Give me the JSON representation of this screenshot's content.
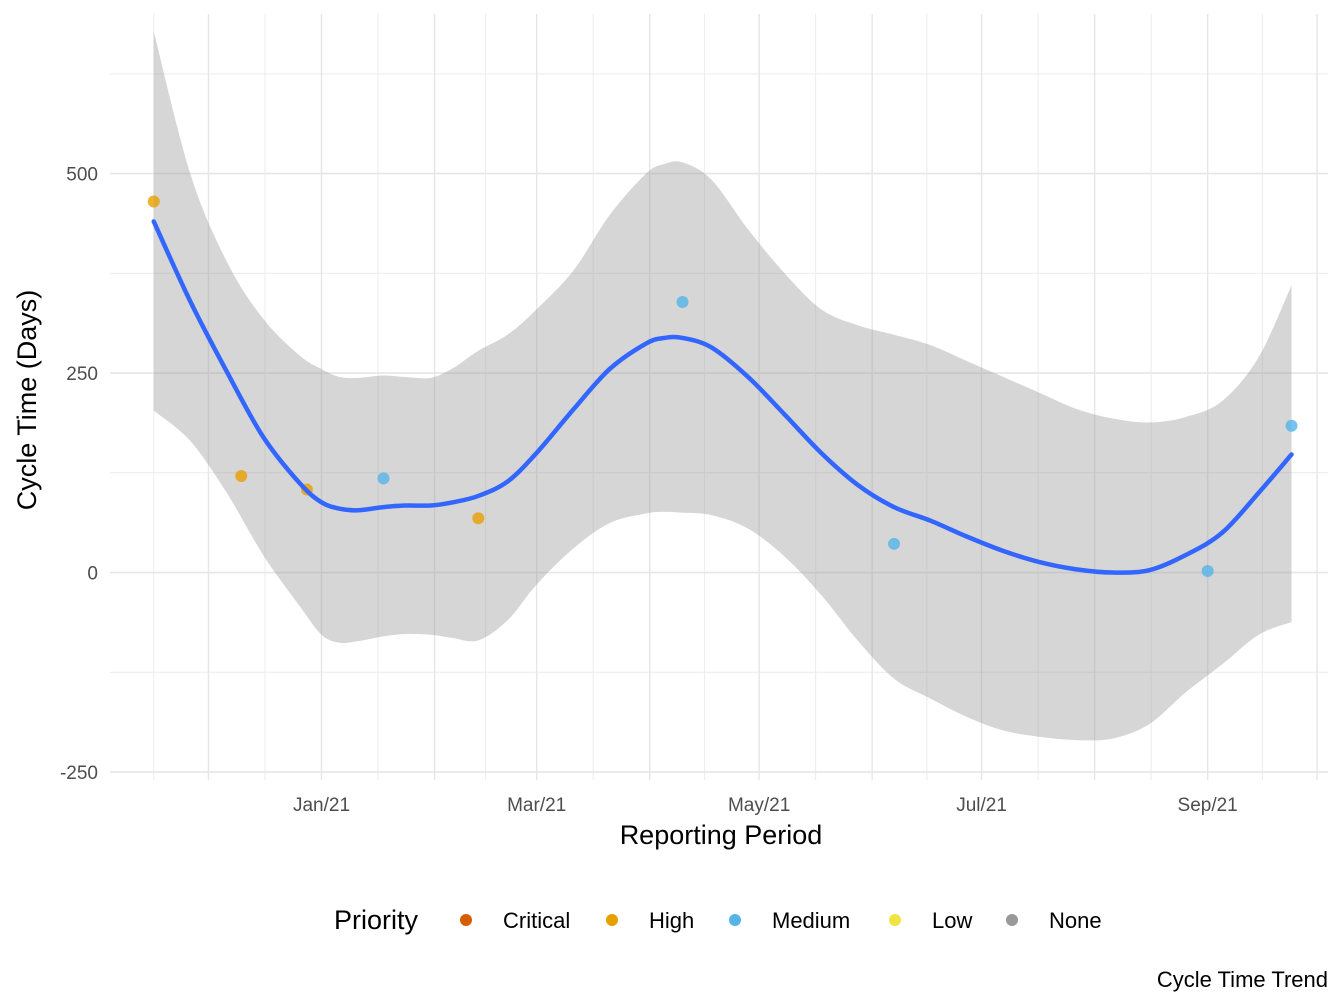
{
  "chart_data": {
    "type": "scatter",
    "xlabel": "Reporting Period",
    "ylabel": "Cycle Time (Days)",
    "caption": "Cycle Time Trend",
    "x_range": [
      "2020-11-04",
      "2021-10-04"
    ],
    "ylim": [
      -260,
      700
    ],
    "x_ticks": [
      {
        "date": "2021-01-01",
        "label": "Jan/21"
      },
      {
        "date": "2021-03-01",
        "label": "Mar/21"
      },
      {
        "date": "2021-05-01",
        "label": "May/21"
      },
      {
        "date": "2021-07-01",
        "label": "Jul/21"
      },
      {
        "date": "2021-09-01",
        "label": "Sep/21"
      }
    ],
    "y_ticks": [
      {
        "value": -250,
        "label": "-250"
      },
      {
        "value": 0,
        "label": "0"
      },
      {
        "value": 250,
        "label": "250"
      },
      {
        "value": 500,
        "label": "500"
      }
    ],
    "legend": {
      "title": "Priority",
      "position": "bottom",
      "items": [
        {
          "label": "Critical",
          "color": "#D55E00"
        },
        {
          "label": "High",
          "color": "#E69F00"
        },
        {
          "label": "Medium",
          "color": "#56B4E9"
        },
        {
          "label": "Low",
          "color": "#F0E442"
        },
        {
          "label": "None",
          "color": "#999999"
        }
      ]
    },
    "points": [
      {
        "date": "2020-11-16",
        "y": 465,
        "priority": "High"
      },
      {
        "date": "2020-12-10",
        "y": 121,
        "priority": "High"
      },
      {
        "date": "2020-12-28",
        "y": 104,
        "priority": "High"
      },
      {
        "date": "2021-01-18",
        "y": 118,
        "priority": "Medium"
      },
      {
        "date": "2021-02-13",
        "y": 68,
        "priority": "High"
      },
      {
        "date": "2021-04-10",
        "y": 339,
        "priority": "Medium"
      },
      {
        "date": "2021-06-07",
        "y": 36,
        "priority": "Medium"
      },
      {
        "date": "2021-09-01",
        "y": 2,
        "priority": "Medium"
      },
      {
        "date": "2021-09-24",
        "y": 184,
        "priority": "Medium"
      }
    ],
    "smooth": {
      "color": "#3366FF",
      "ribbon_color": "#999999",
      "values": [
        {
          "date": "2020-11-16",
          "y": 440,
          "lower": 203,
          "upper": 678
        },
        {
          "date": "2020-11-26",
          "y": 340,
          "lower": 165,
          "upper": 500
        },
        {
          "date": "2020-12-06",
          "y": 252,
          "lower": 100,
          "upper": 390
        },
        {
          "date": "2020-12-16",
          "y": 170,
          "lower": 22,
          "upper": 318
        },
        {
          "date": "2020-12-26",
          "y": 112,
          "lower": -42,
          "upper": 272
        },
        {
          "date": "2021-01-01",
          "y": 88,
          "lower": -78,
          "upper": 255
        },
        {
          "date": "2021-01-06",
          "y": 80,
          "lower": -88,
          "upper": 245
        },
        {
          "date": "2021-01-11",
          "y": 78,
          "lower": -86,
          "upper": 244
        },
        {
          "date": "2021-01-18",
          "y": 82,
          "lower": -80,
          "upper": 247
        },
        {
          "date": "2021-01-24",
          "y": 84,
          "lower": -77,
          "upper": 245
        },
        {
          "date": "2021-01-31",
          "y": 84,
          "lower": -78,
          "upper": 244
        },
        {
          "date": "2021-02-06",
          "y": 88,
          "lower": -82,
          "upper": 256
        },
        {
          "date": "2021-02-13",
          "y": 96,
          "lower": -85,
          "upper": 278
        },
        {
          "date": "2021-02-21",
          "y": 114,
          "lower": -60,
          "upper": 298
        },
        {
          "date": "2021-03-01",
          "y": 150,
          "lower": -15,
          "upper": 330
        },
        {
          "date": "2021-03-11",
          "y": 204,
          "lower": 30,
          "upper": 378
        },
        {
          "date": "2021-03-21",
          "y": 255,
          "lower": 62,
          "upper": 448
        },
        {
          "date": "2021-03-31",
          "y": 287,
          "lower": 74,
          "upper": 500
        },
        {
          "date": "2021-04-05",
          "y": 294,
          "lower": 76,
          "upper": 512
        },
        {
          "date": "2021-04-10",
          "y": 294,
          "lower": 75,
          "upper": 514
        },
        {
          "date": "2021-04-18",
          "y": 282,
          "lower": 72,
          "upper": 492
        },
        {
          "date": "2021-04-28",
          "y": 245,
          "lower": 55,
          "upper": 430
        },
        {
          "date": "2021-05-08",
          "y": 198,
          "lower": 20,
          "upper": 375
        },
        {
          "date": "2021-05-18",
          "y": 150,
          "lower": -28,
          "upper": 330
        },
        {
          "date": "2021-05-28",
          "y": 110,
          "lower": -85,
          "upper": 310
        },
        {
          "date": "2021-06-07",
          "y": 82,
          "lower": -133,
          "upper": 298
        },
        {
          "date": "2021-06-17",
          "y": 65,
          "lower": -158,
          "upper": 285
        },
        {
          "date": "2021-06-27",
          "y": 45,
          "lower": -181,
          "upper": 265
        },
        {
          "date": "2021-07-07",
          "y": 27,
          "lower": -198,
          "upper": 245
        },
        {
          "date": "2021-07-17",
          "y": 13,
          "lower": -206,
          "upper": 225
        },
        {
          "date": "2021-07-27",
          "y": 4,
          "lower": -210,
          "upper": 205
        },
        {
          "date": "2021-08-06",
          "y": 0,
          "lower": -208,
          "upper": 193
        },
        {
          "date": "2021-08-16",
          "y": 3,
          "lower": -190,
          "upper": 188
        },
        {
          "date": "2021-08-26",
          "y": 22,
          "lower": -150,
          "upper": 195
        },
        {
          "date": "2021-09-05",
          "y": 50,
          "lower": -115,
          "upper": 215
        },
        {
          "date": "2021-09-15",
          "y": 100,
          "lower": -78,
          "upper": 270
        },
        {
          "date": "2021-09-24",
          "y": 148,
          "lower": -62,
          "upper": 360
        }
      ]
    }
  }
}
